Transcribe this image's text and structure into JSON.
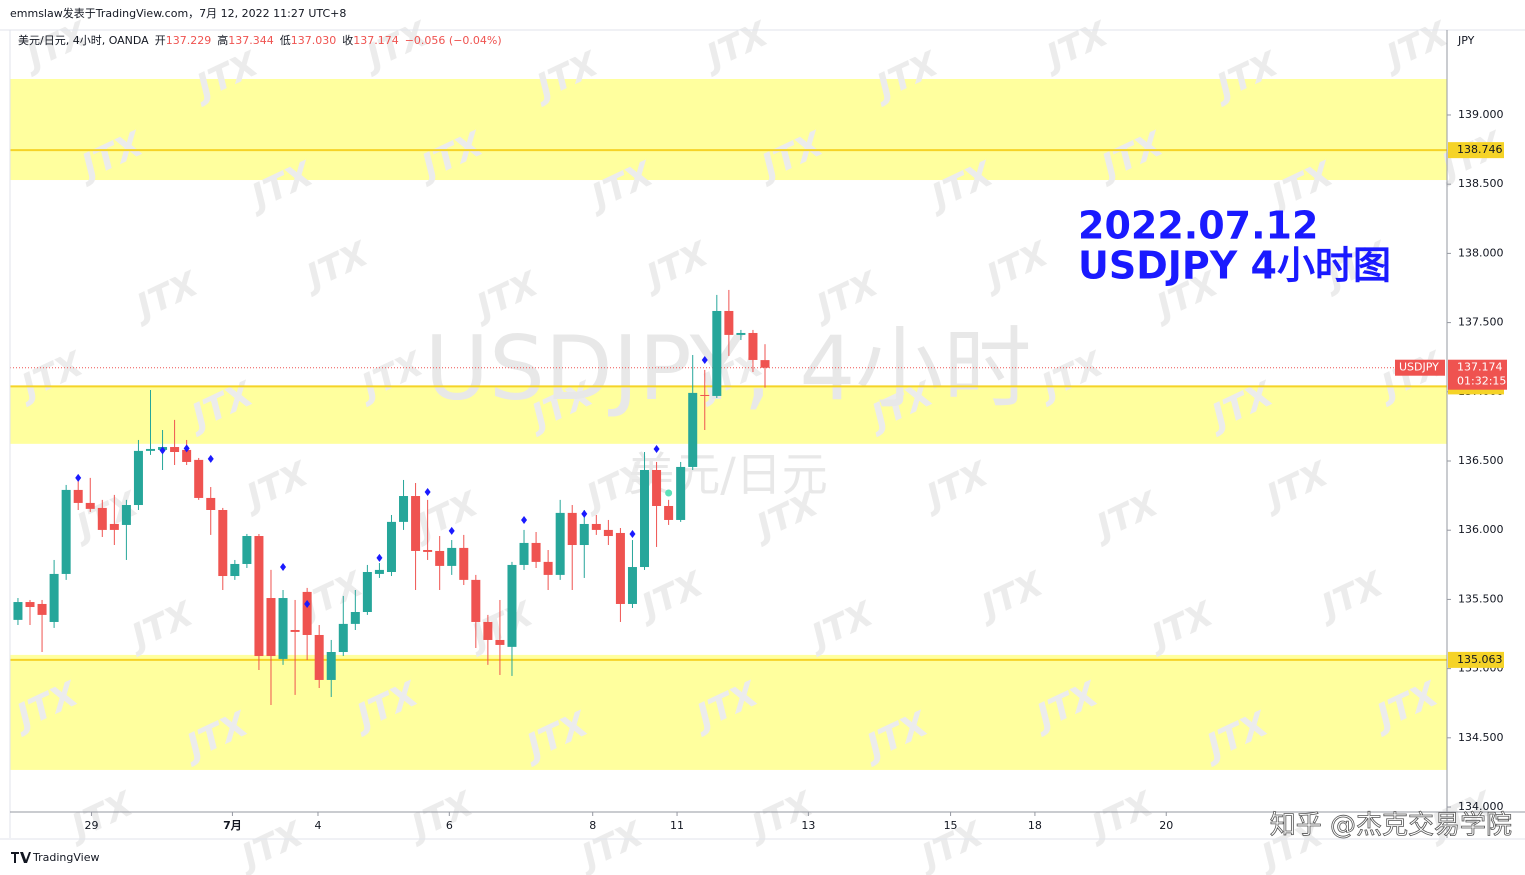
{
  "chart_data": {
    "type": "candlestick",
    "publisher": "emmslaw发表于TradingView.com，7月 12, 2022 11:27 UTC+8",
    "legend": {
      "symbol": "美元/日元, 4小时, OANDA",
      "open_label": "开",
      "open": "137.229",
      "high_label": "高",
      "high": "137.344",
      "low_label": "低",
      "low": "137.030",
      "close_label": "收",
      "close": "137.174",
      "change": "−0.056 (−0.04%)"
    },
    "currency": "JPY",
    "watermark": "USDJPY, 4小时",
    "watermark_sub": "美元/日元",
    "logo_watermark": "JTX",
    "annotation": [
      "2022.07.12",
      "USDJPY 4小时图"
    ],
    "footer_logo": "TradingView",
    "footer_credit": "知乎 @杰克交易学院",
    "up_color": "#26a69a",
    "down_color": "#ef5350",
    "candles": [
      [
        135.352,
        135.51,
        135.315,
        135.481
      ],
      [
        135.481,
        135.496,
        135.315,
        135.445
      ],
      [
        135.467,
        135.496,
        135.12,
        135.388
      ],
      [
        135.337,
        135.785,
        135.294,
        135.684
      ],
      [
        135.684,
        136.327,
        135.641,
        136.291
      ],
      [
        136.291,
        136.378,
        136.146,
        136.197
      ],
      [
        136.197,
        136.378,
        136.132,
        136.154
      ],
      [
        136.161,
        136.219,
        135.951,
        136.002
      ],
      [
        136.045,
        136.255,
        135.893,
        136.002
      ],
      [
        136.038,
        136.219,
        135.785,
        136.182
      ],
      [
        136.182,
        136.652,
        136.146,
        136.573
      ],
      [
        136.573,
        137.013,
        136.544,
        136.587
      ],
      [
        136.58,
        136.724,
        136.435,
        136.601
      ],
      [
        136.601,
        136.797,
        136.471,
        136.565
      ],
      [
        136.58,
        136.652,
        136.471,
        136.493
      ],
      [
        136.508,
        136.522,
        136.219,
        136.233
      ],
      [
        136.233,
        136.312,
        135.966,
        136.146
      ],
      [
        136.146,
        136.161,
        135.568,
        135.669
      ],
      [
        135.669,
        135.785,
        135.641,
        135.756
      ],
      [
        135.756,
        135.973,
        135.727,
        135.958
      ],
      [
        135.958,
        135.973,
        134.99,
        135.091
      ],
      [
        135.51,
        135.713,
        134.737,
        135.091
      ],
      [
        135.07,
        135.568,
        135.027,
        135.51
      ],
      [
        135.279,
        135.496,
        134.81,
        135.265
      ],
      [
        135.554,
        135.583,
        135.062,
        135.243
      ],
      [
        135.243,
        135.315,
        134.86,
        134.918
      ],
      [
        134.918,
        135.207,
        134.795,
        135.12
      ],
      [
        135.12,
        135.525,
        135.091,
        135.323
      ],
      [
        135.323,
        135.568,
        135.279,
        135.409
      ],
      [
        135.409,
        135.749,
        135.388,
        135.698
      ],
      [
        135.684,
        135.763,
        135.655,
        135.713
      ],
      [
        135.698,
        136.11,
        135.669,
        136.06
      ],
      [
        136.06,
        136.363,
        136.002,
        136.247
      ],
      [
        136.247,
        136.341,
        135.568,
        135.85
      ],
      [
        135.857,
        136.219,
        135.785,
        135.843
      ],
      [
        135.85,
        135.958,
        135.568,
        135.742
      ],
      [
        135.742,
        135.929,
        135.677,
        135.872
      ],
      [
        135.872,
        135.966,
        135.604,
        135.641
      ],
      [
        135.641,
        135.677,
        135.149,
        135.337
      ],
      [
        135.337,
        135.388,
        135.027,
        135.207
      ],
      [
        135.207,
        135.496,
        134.954,
        135.171
      ],
      [
        135.157,
        135.771,
        134.947,
        135.749
      ],
      [
        135.749,
        136.002,
        135.713,
        135.908
      ],
      [
        135.908,
        135.987,
        135.727,
        135.771
      ],
      [
        135.771,
        135.857,
        135.568,
        135.677
      ],
      [
        135.677,
        136.219,
        135.641,
        136.125
      ],
      [
        136.125,
        136.182,
        135.568,
        135.893
      ],
      [
        135.893,
        136.146,
        135.655,
        136.045
      ],
      [
        136.045,
        136.11,
        135.966,
        136.002
      ],
      [
        136.002,
        136.074,
        135.893,
        135.958
      ],
      [
        135.98,
        136.016,
        135.337,
        135.467
      ],
      [
        135.467,
        135.929,
        135.438,
        135.734
      ],
      [
        135.734,
        136.565,
        135.713,
        136.435
      ],
      [
        136.435,
        136.493,
        135.879,
        136.175
      ],
      [
        136.175,
        136.219,
        136.038,
        136.074
      ],
      [
        136.074,
        136.493,
        136.06,
        136.457
      ],
      [
        136.457,
        137.266,
        136.435,
        136.992
      ],
      [
        136.977,
        137.158,
        136.724,
        136.97
      ],
      [
        136.97,
        137.7,
        136.955,
        137.584
      ],
      [
        137.584,
        137.736,
        137.259,
        137.411
      ],
      [
        137.411,
        137.447,
        137.374,
        137.425
      ],
      [
        137.425,
        137.447,
        137.143,
        137.23
      ],
      [
        137.229,
        137.344,
        137.03,
        137.174
      ]
    ],
    "markers": [
      {
        "color": "#1a1aff",
        "shape": "diamond",
        "values": [
          null,
          null,
          null,
          null,
          null,
          136.378,
          null,
          null,
          null,
          null,
          null,
          null,
          136.577,
          null,
          136.591,
          null,
          136.515,
          null,
          null,
          null,
          null,
          null,
          135.734,
          null,
          135.467,
          null,
          null,
          null,
          null,
          null,
          135.8,
          null,
          null,
          null,
          136.276,
          null,
          135.995,
          null,
          null,
          null,
          null,
          null,
          136.074,
          null,
          null,
          null,
          null,
          136.118,
          null,
          null,
          null,
          135.973,
          null,
          136.587,
          null,
          null,
          null,
          137.23,
          null,
          null,
          null,
          null,
          null
        ]
      },
      {
        "color": "#5de0b8",
        "shape": "dot",
        "values": [
          null,
          null,
          null,
          null,
          null,
          null,
          null,
          null,
          null,
          null,
          null,
          null,
          null,
          null,
          null,
          null,
          null,
          null,
          null,
          null,
          null,
          null,
          null,
          null,
          null,
          null,
          null,
          null,
          null,
          null,
          null,
          null,
          null,
          null,
          null,
          null,
          null,
          null,
          null,
          null,
          null,
          null,
          null,
          null,
          null,
          null,
          null,
          null,
          null,
          null,
          null,
          null,
          null,
          null,
          136.269,
          null,
          null,
          null,
          null,
          null,
          null,
          null,
          null
        ]
      }
    ],
    "zones": [
      {
        "from": 138.53,
        "to": 139.26
      },
      {
        "from": 136.624,
        "to": 137.042
      },
      {
        "from": 134.268,
        "to": 135.099
      }
    ],
    "zone_color": "#ffff9e",
    "levels": [
      138.746,
      137.039,
      135.063
    ],
    "level_color": "#f5d327",
    "last_price": 137.174,
    "last_price_label": "USDJPY",
    "countdown": "01:32:15",
    "ylim": [
      133.964,
      139.614
    ],
    "yticks": [
      {
        "value": 134,
        "label": "134.000"
      },
      {
        "value": 134.5,
        "label": "134.500"
      },
      {
        "value": 135,
        "label": "135.000"
      },
      {
        "value": 135.5,
        "label": "135.500"
      },
      {
        "value": 136,
        "label": "136.000"
      },
      {
        "value": 136.5,
        "label": "136.500"
      },
      {
        "value": 137,
        "label": "137.000"
      },
      {
        "value": 137.5,
        "label": "137.500"
      },
      {
        "value": 138,
        "label": "138.000"
      },
      {
        "value": 138.5,
        "label": "138.500"
      },
      {
        "value": 139,
        "label": "139.000"
      }
    ],
    "xlim": [
      -0.66,
      118.6
    ],
    "xticks": [
      {
        "value": 6.1,
        "label": "29"
      },
      {
        "value": 17.8,
        "label": "7月"
      },
      {
        "value": 24.9,
        "label": "4"
      },
      {
        "value": 35.8,
        "label": "6"
      },
      {
        "value": 47.7,
        "label": "8"
      },
      {
        "value": 54.7,
        "label": "11"
      },
      {
        "value": 65.6,
        "label": "13"
      },
      {
        "value": 77.4,
        "label": "15"
      },
      {
        "value": 84.4,
        "label": "18"
      },
      {
        "value": 95.3,
        "label": "20"
      }
    ]
  }
}
